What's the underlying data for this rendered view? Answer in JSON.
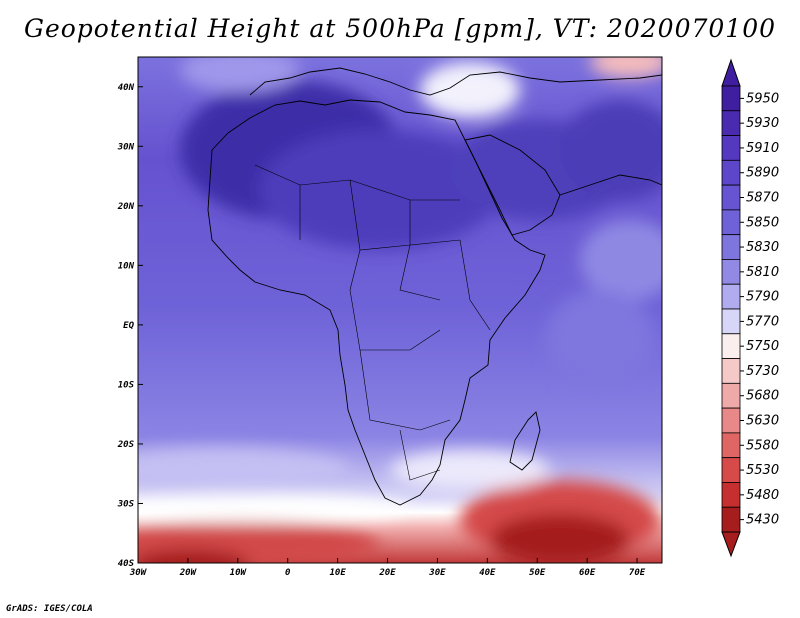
{
  "title": "Geopotential Height at 500hPa [gpm], VT: 2020070100",
  "footer": "GrADS: IGES/COLA",
  "map": {
    "lon_range": [
      -30,
      75
    ],
    "lat_range": [
      -40,
      45
    ],
    "lon_ticks": [
      "30W",
      "20W",
      "10W",
      "0",
      "10E",
      "20E",
      "30E",
      "40E",
      "50E",
      "60E",
      "70E"
    ],
    "lat_ticks": [
      "40S",
      "30S",
      "20S",
      "10S",
      "EQ",
      "10N",
      "20N",
      "30N",
      "40N"
    ]
  },
  "colorbar": {
    "levels": [
      "5950",
      "5930",
      "5910",
      "5890",
      "5870",
      "5850",
      "5830",
      "5810",
      "5790",
      "5770",
      "5750",
      "5730",
      "5680",
      "5630",
      "5580",
      "5530",
      "5480",
      "5430"
    ],
    "colors": [
      "#3f1fa0",
      "#4a2bb0",
      "#5438c0",
      "#5d46c9",
      "#6654d2",
      "#6f62d9",
      "#7e75df",
      "#9289e5",
      "#b1abef",
      "#d8d6f8",
      "#fbeeee",
      "#f6c9c9",
      "#f0a9a9",
      "#e98888",
      "#e06666",
      "#d74a4a",
      "#c62f2f",
      "#a51d1d"
    ]
  }
}
